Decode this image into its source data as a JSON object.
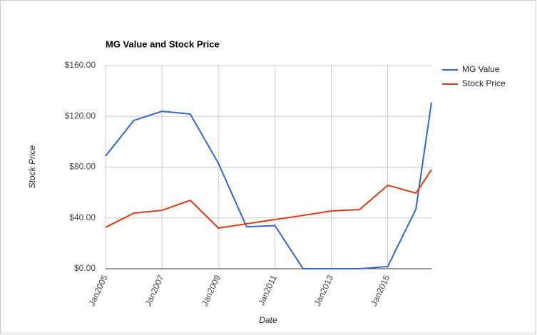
{
  "chart_data": {
    "type": "line",
    "title": "MG Value and Stock Price",
    "x_label": "Date",
    "y_label": "Stock Price",
    "x": [
      2005,
      2006,
      2007,
      2008,
      2009,
      2010,
      2011,
      2012,
      2013,
      2014,
      2015,
      2016,
      2016.55
    ],
    "series": [
      {
        "name": "MG Value",
        "color": "#3366cc",
        "values": [
          88.7,
          116.8,
          124,
          121.8,
          83,
          33,
          34,
          0,
          0,
          0,
          1.7,
          47,
          131
        ]
      },
      {
        "name": "Stock Price",
        "color": "#dc3912",
        "values": [
          32.6,
          43.8,
          46,
          53.9,
          32,
          35.4,
          38.7,
          42,
          45.5,
          46.6,
          65.7,
          59.5,
          78
        ]
      }
    ],
    "xlim": [
      2005,
      2016.55
    ],
    "xticks": [
      {
        "value": 2005,
        "label": "Jan2005"
      },
      {
        "value": 2007,
        "label": "Jan2007"
      },
      {
        "value": 2009,
        "label": "Jan2009"
      },
      {
        "value": 2011,
        "label": "Jan2011"
      },
      {
        "value": 2013,
        "label": "Jan2013"
      },
      {
        "value": 2015,
        "label": "Jan2015"
      }
    ],
    "ylim": [
      0,
      160
    ],
    "yticks": [
      {
        "value": 0,
        "label": "$0.00"
      },
      {
        "value": 40,
        "label": "$40.00"
      },
      {
        "value": 80,
        "label": "$80.00"
      },
      {
        "value": 120,
        "label": "$120.00"
      },
      {
        "value": 160,
        "label": "$160.00"
      }
    ],
    "grid": true,
    "legend": "right"
  }
}
